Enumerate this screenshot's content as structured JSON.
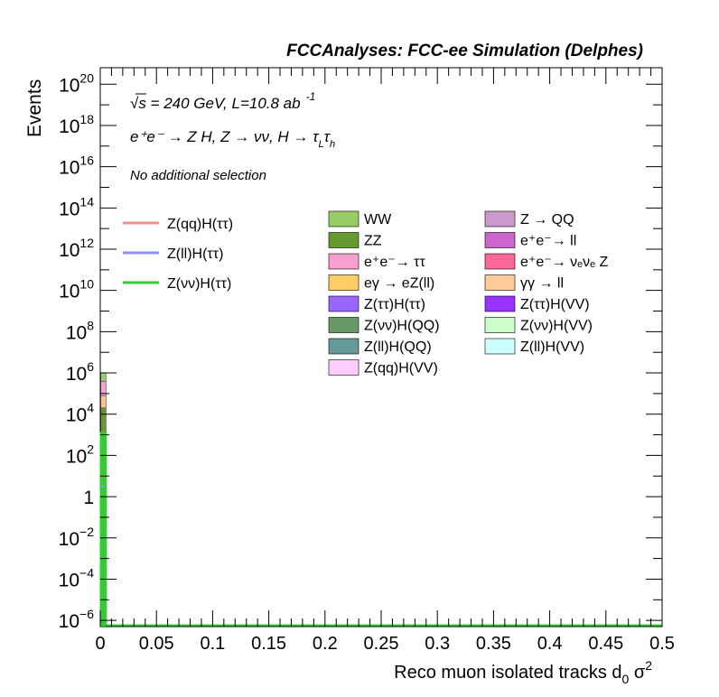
{
  "chart_data": {
    "type": "bar",
    "title": "FCCAnalyses: FCC-ee Simulation (Delphes)",
    "annotations": {
      "energy": "√s = 240 GeV, L=10.8 ab",
      "energy_sup": "-1",
      "process": "e⁺e⁻ → Z H, Z → νν, H → τ",
      "process_sub1": "L",
      "process_tau2": "τ",
      "process_sub2": "h",
      "selection": "No additional selection"
    },
    "xlabel": "Reco muon isolated tracks d",
    "xlabel_sub": "0",
    "xlabel_tail": " σ",
    "xlabel_sup": "2",
    "ylabel": "Events",
    "x_range": [
      0,
      0.5
    ],
    "y_range_log10": [
      -6.3,
      20.8
    ],
    "log_y": true,
    "grid": false,
    "x_ticks": [
      "0",
      "0.05",
      "0.1",
      "0.15",
      "0.2",
      "0.25",
      "0.3",
      "0.35",
      "0.4",
      "0.45",
      "0.5"
    ],
    "x_tick_values": [
      0,
      0.05,
      0.1,
      0.15,
      0.2,
      0.25,
      0.3,
      0.35,
      0.4,
      0.45,
      0.5
    ],
    "y_ticks": [
      {
        "exp": -6,
        "base": "10",
        "sup": "−6"
      },
      {
        "exp": -4,
        "base": "10",
        "sup": "−4"
      },
      {
        "exp": -2,
        "base": "10",
        "sup": "−2"
      },
      {
        "exp": 0,
        "base": "1",
        "sup": ""
      },
      {
        "exp": 2,
        "base": "10",
        "sup": "2"
      },
      {
        "exp": 4,
        "base": "10",
        "sup": "4"
      },
      {
        "exp": 6,
        "base": "10",
        "sup": "6"
      },
      {
        "exp": 8,
        "base": "10",
        "sup": "8"
      },
      {
        "exp": 10,
        "base": "10",
        "sup": "10"
      },
      {
        "exp": 12,
        "base": "10",
        "sup": "12"
      },
      {
        "exp": 14,
        "base": "10",
        "sup": "14"
      },
      {
        "exp": 16,
        "base": "10",
        "sup": "16"
      },
      {
        "exp": 18,
        "base": "10",
        "sup": "18"
      },
      {
        "exp": 20,
        "base": "10",
        "sup": "20"
      }
    ],
    "first_bin": [
      0,
      0.005
    ],
    "stacked_series": [
      {
        "name": "Z(νν)H(ττ)",
        "color": "#33cc33",
        "log10_value": 3.1
      },
      {
        "name": "ZZ",
        "color": "#66992f",
        "log10_value": 4.3
      },
      {
        "name": "γγ → ll",
        "color": "#f8c48f",
        "log10_value": 4.9
      },
      {
        "name": "e⁺e⁻→ ττ",
        "color": "#f79fcf",
        "log10_value": 5.6
      },
      {
        "name": "WW",
        "color": "#99cc66",
        "log10_value": 6.0
      }
    ],
    "signal_lines": [
      {
        "name": "Z(qq)H(ττ)",
        "color": "#f4908c",
        "log10_value": 1.0
      },
      {
        "name": "Z(ll)H(ττ)",
        "color": "#8f8ff7",
        "log10_value": 0.5
      },
      {
        "name": "Z(νν)H(ττ)",
        "color": "#33cc33",
        "log10_value": 3.1
      }
    ],
    "legend_lines": [
      {
        "label": "Z(qq)H(ττ)",
        "color": "#f4908c"
      },
      {
        "label": "Z(ll)H(ττ)",
        "color": "#8f8ff7"
      },
      {
        "label": "Z(νν)H(ττ)",
        "color": "#33cc33"
      }
    ],
    "legend_boxes_col1": [
      {
        "label": "WW",
        "color": "#99cc66"
      },
      {
        "label": "ZZ",
        "color": "#66992f"
      },
      {
        "label": "e⁺e⁻→ ττ",
        "color": "#f79fcf"
      },
      {
        "label": "eγ → eZ(ll)",
        "color": "#ffcc66"
      },
      {
        "label": "Z(ττ)H(ττ)",
        "color": "#9966ff"
      },
      {
        "label": "Z(νν)H(QQ)",
        "color": "#669966"
      },
      {
        "label": "Z(ll)H(QQ)",
        "color": "#669999"
      },
      {
        "label": "Z(qq)H(VV)",
        "color": "#ffccff"
      }
    ],
    "legend_boxes_col2": [
      {
        "label": "Z → QQ",
        "color": "#cc99cc"
      },
      {
        "label": "e⁺e⁻→ ll",
        "color": "#cc66cc"
      },
      {
        "label": "e⁺e⁻→ νₑνₑ Z",
        "color": "#ff6699"
      },
      {
        "label": "γγ → ll",
        "color": "#ffcc99"
      },
      {
        "label": "Z(ττ)H(VV)",
        "color": "#9933ff"
      },
      {
        "label": "Z(νν)H(VV)",
        "color": "#ccffcc"
      },
      {
        "label": "Z(ll)H(VV)",
        "color": "#ccffff"
      }
    ]
  }
}
